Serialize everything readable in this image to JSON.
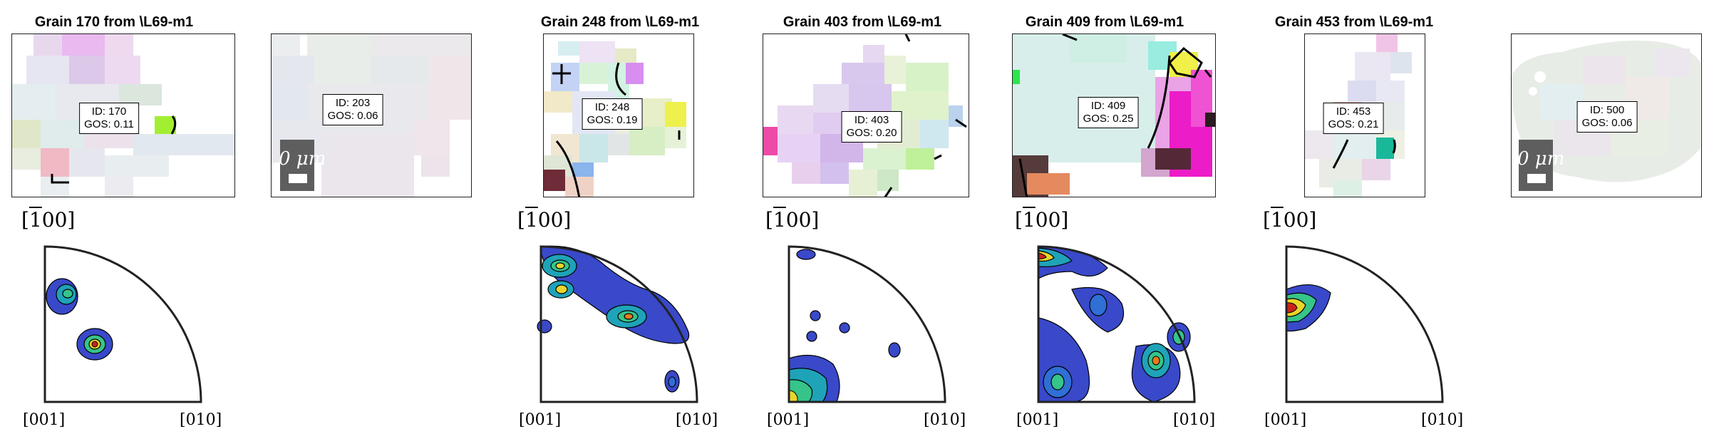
{
  "panels": [
    {
      "title": "Grain 170 from \\L69-m1",
      "id_label": "ID: 170",
      "gos_label": "GOS: 0.11",
      "has_ipf": true,
      "direction_label": "[100]",
      "ipf_left": "[001]",
      "ipf_right": "[010]"
    },
    {
      "title": "",
      "id_label": "ID: 203",
      "gos_label": "GOS: 0.06",
      "has_ipf": false,
      "scale_label": "0 μm"
    },
    {
      "title": "Grain 248 from \\L69-m1",
      "id_label": "ID: 248",
      "gos_label": "GOS: 0.19",
      "has_ipf": true,
      "direction_label": "[100]",
      "ipf_left": "[001]",
      "ipf_right": "[010]"
    },
    {
      "title": "Grain 403 from \\L69-m1",
      "id_label": "ID: 403",
      "gos_label": "GOS: 0.20",
      "has_ipf": true,
      "direction_label": "[100]",
      "ipf_left": "[001]",
      "ipf_right": "[010]"
    },
    {
      "title": "Grain 409 from \\L69-m1",
      "id_label": "ID: 409",
      "gos_label": "GOS: 0.25",
      "has_ipf": true,
      "direction_label": "[100]",
      "ipf_left": "[001]",
      "ipf_right": "[010]"
    },
    {
      "title": "Grain 453 from \\L69-m1",
      "id_label": "ID: 453",
      "gos_label": "GOS: 0.21",
      "has_ipf": true,
      "direction_label": "[100]",
      "ipf_left": "[001]",
      "ipf_right": "[010]"
    },
    {
      "title": "",
      "id_label": "ID: 500",
      "gos_label": "GOS: 0.06",
      "has_ipf": false,
      "scale_label": "0 μm"
    }
  ],
  "colors": {
    "contour_levels": [
      "#3949c9",
      "#2f6fd6",
      "#1fa3b8",
      "#36c48a",
      "#9ed43c",
      "#e9d52a",
      "#e87a1c",
      "#c9241a"
    ]
  }
}
